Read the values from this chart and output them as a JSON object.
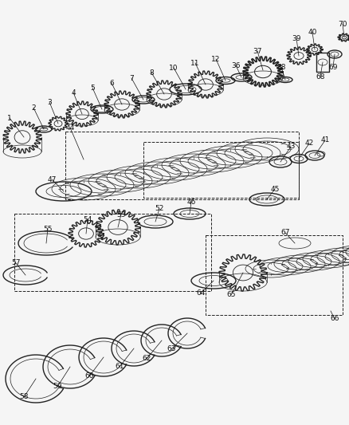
{
  "bg_color": "#f5f5f5",
  "line_color": "#222222",
  "lw_main": 1.0,
  "lw_thin": 0.5,
  "lw_thick": 1.2,
  "fig_width": 4.39,
  "fig_height": 5.33,
  "dpi": 100,
  "label_fontsize": 6.5,
  "label_color": "#111111"
}
